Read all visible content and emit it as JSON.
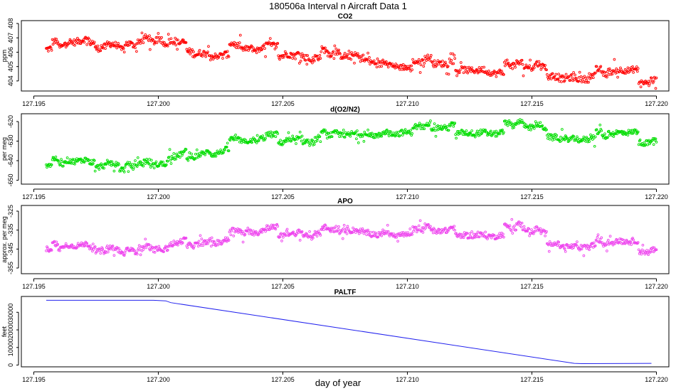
{
  "title": "180506a   Interval n Aircraft Data 1",
  "xlabel": "day of year",
  "chart_data": [
    {
      "type": "scatter",
      "title": "CO2",
      "ylabel": "ppm",
      "color": "#ff0000",
      "xlim": [
        127.1945,
        127.2205
      ],
      "ylim": [
        403.3,
        408.2
      ],
      "xticks": [
        "127.195",
        "127.200",
        "127.205",
        "127.210",
        "127.215",
        "127.220"
      ],
      "yticks": [
        "404",
        "405",
        "406",
        "407",
        "408"
      ],
      "series": [
        {
          "trend": [
            [
              127.1955,
              406.2
            ],
            [
              127.197,
              406.6
            ],
            [
              127.199,
              406.6
            ],
            [
              127.2,
              406.5
            ],
            [
              127.203,
              406.1
            ],
            [
              127.205,
              406.0
            ],
            [
              127.208,
              405.6
            ],
            [
              127.21,
              405.3
            ],
            [
              127.212,
              405.1
            ],
            [
              127.215,
              404.9
            ],
            [
              127.217,
              404.4
            ],
            [
              127.218,
              404.4
            ],
            [
              127.22,
              404.3
            ]
          ],
          "scatter_amplitude": 0.55,
          "x_range": [
            127.1955,
            127.22
          ],
          "n_points": 900
        }
      ]
    },
    {
      "type": "scatter",
      "title": "d(O2/N2)",
      "ylabel": "per meg",
      "color": "#00dd00",
      "xlim": [
        127.1945,
        127.2205
      ],
      "ylim": [
        -652,
        -616
      ],
      "xticks": [
        "127.195",
        "127.200",
        "127.205",
        "127.210",
        "127.215",
        "127.220"
      ],
      "yticks": [
        "-650",
        "-640",
        "-630",
        "-620"
      ],
      "series": [
        {
          "trend": [
            [
              127.1955,
              -642
            ],
            [
              127.198,
              -641
            ],
            [
              127.2,
              -644
            ],
            [
              127.2005,
              -641
            ],
            [
              127.2015,
              -635
            ],
            [
              127.203,
              -632
            ],
            [
              127.205,
              -629
            ],
            [
              127.208,
              -627
            ],
            [
              127.21,
              -623
            ],
            [
              127.213,
              -624
            ],
            [
              127.2145,
              -622
            ],
            [
              127.2165,
              -627
            ],
            [
              127.218,
              -628
            ],
            [
              127.22,
              -628
            ]
          ],
          "scatter_amplitude": 3.5,
          "x_range": [
            127.1955,
            127.22
          ],
          "n_points": 900
        }
      ]
    },
    {
      "type": "scatter",
      "title": "APO",
      "ylabel": "approx. per meg",
      "color": "#ee44ee",
      "xlim": [
        127.1945,
        127.2205
      ],
      "ylim": [
        -358,
        -322
      ],
      "xticks": [
        "127.195",
        "127.200",
        "127.205",
        "127.210",
        "127.215",
        "127.220"
      ],
      "yticks": [
        "-355",
        "-345",
        "-335",
        "-325"
      ],
      "series": [
        {
          "trend": [
            [
              127.1955,
              -345
            ],
            [
              127.198,
              -344
            ],
            [
              127.2,
              -347
            ],
            [
              127.2005,
              -345
            ],
            [
              127.2015,
              -340
            ],
            [
              127.203,
              -338
            ],
            [
              127.205,
              -336
            ],
            [
              127.208,
              -336
            ],
            [
              127.21,
              -335
            ],
            [
              127.213,
              -336
            ],
            [
              127.2145,
              -334
            ],
            [
              127.2165,
              -342
            ],
            [
              127.218,
              -343
            ],
            [
              127.22,
              -344
            ]
          ],
          "scatter_amplitude": 3.5,
          "x_range": [
            127.1955,
            127.22
          ],
          "n_points": 900
        }
      ]
    },
    {
      "type": "line",
      "title": "PALTF",
      "ylabel": "feet",
      "color": "#2222ee",
      "xlim": [
        127.1945,
        127.2205
      ],
      "ylim": [
        -1000,
        39000
      ],
      "xticks": [
        "127.195",
        "127.200",
        "127.205",
        "127.210",
        "127.215",
        "127.220"
      ],
      "yticks": [
        "0",
        "10000",
        "20000",
        "30000"
      ],
      "series": [
        {
          "x": [
            127.1955,
            127.1998,
            127.2003,
            127.2005,
            127.2167,
            127.217,
            127.2198
          ],
          "y": [
            36800,
            36800,
            36500,
            35500,
            1000,
            800,
            1000
          ]
        }
      ]
    }
  ]
}
